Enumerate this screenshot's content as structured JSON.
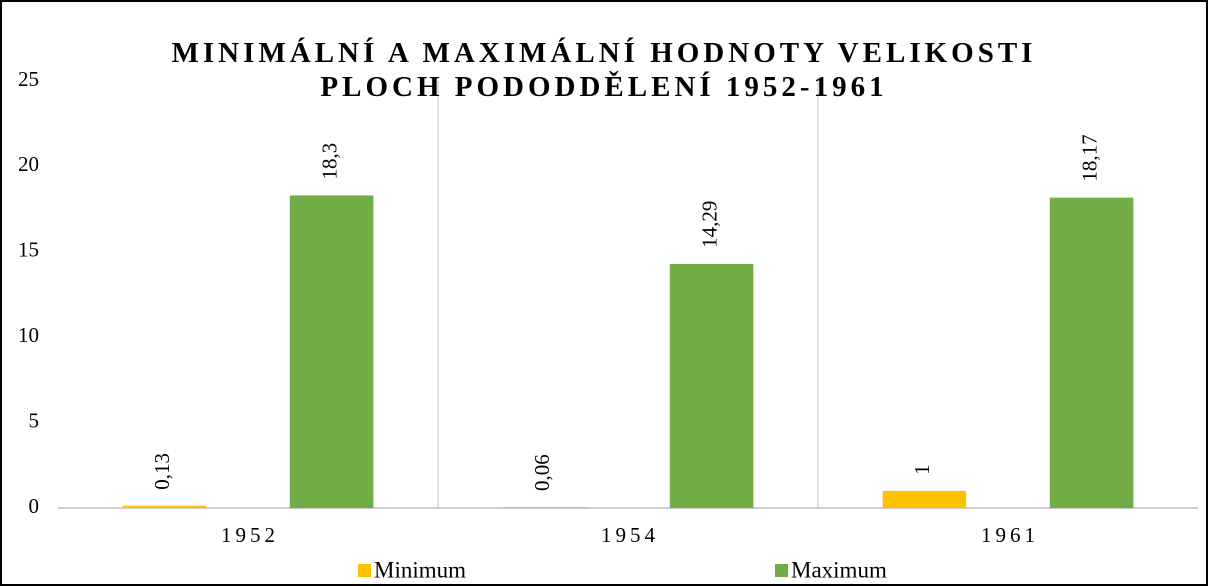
{
  "chart_data": {
    "type": "bar",
    "title": "MINIMÁLNÍ A MAXIMÁLNÍ HODNOTY  VELIKOSTI\nPLOCH PODODDĚLENÍ 1952-1961",
    "categories": [
      "1952",
      "1954",
      "1961"
    ],
    "series": [
      {
        "name": "Minimum",
        "color": "#ffc000",
        "values": [
          0.13,
          0.06,
          1
        ],
        "value_labels": [
          "0,13",
          "0,06",
          "1"
        ]
      },
      {
        "name": "Maximum",
        "color": "#70ad47",
        "values": [
          18.3,
          14.29,
          18.17
        ],
        "value_labels": [
          "18,3",
          "14,29",
          "18,17"
        ]
      }
    ],
    "ylim": [
      0,
      25
    ],
    "yticks": [
      0,
      5,
      10,
      15,
      20,
      25
    ],
    "grid": false
  }
}
